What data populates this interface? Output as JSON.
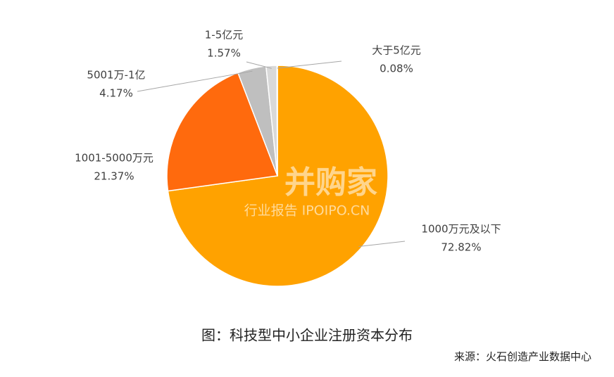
{
  "chart_data": {
    "type": "pie",
    "title": "图：科技型中小企业注册资本分布",
    "source": "来源：火石创造产业数据中心",
    "watermark": [
      "并购家",
      "行业报告 IPOIPO.CN"
    ],
    "categories": [
      "1000万元及以下",
      "1001-5000万元",
      "5001万-1亿",
      "1-5亿元",
      "大于5亿元"
    ],
    "values": [
      72.82,
      21.37,
      4.17,
      1.57,
      0.08
    ],
    "value_labels": [
      "72.82%",
      "21.37%",
      "4.17%",
      "1.57%",
      "0.08%"
    ],
    "colors": [
      "#FFA200",
      "#FF6A0D",
      "#BFBFBF",
      "#D9D9D9",
      "#5B9BD5"
    ]
  }
}
